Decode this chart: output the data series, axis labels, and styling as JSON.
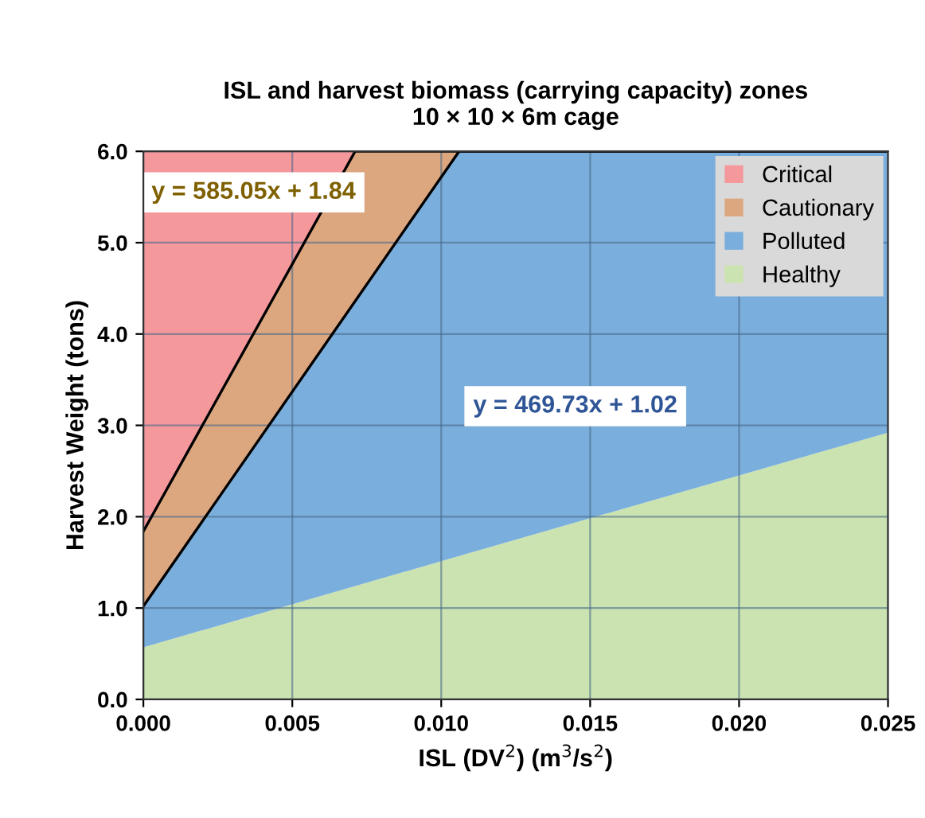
{
  "chart_data": {
    "type": "area",
    "stacked": true,
    "title": "ISL and harvest biomass (carrying capacity) zones\n10 × 10 × 6m cage",
    "xlabel": "ISL (DV$^{2}$) (m$^{3}$/s$^{2}$)",
    "ylabel": "Harvest Weight (tons)",
    "x": [
      0,
      0.00711,
      0.0106,
      0.025
    ],
    "series": [
      {
        "name": "Healthy",
        "color": "#cbe3b0",
        "values": [
          0.57,
          1.24,
          1.57,
          2.92
        ],
        "line_style": "none"
      },
      {
        "name": "Polluted",
        "color": "#7aaedc",
        "values": [
          0.45,
          3.12,
          4.43,
          3.08
        ],
        "line_style": "solid"
      },
      {
        "name": "Cautionary",
        "color": "#dca67f",
        "values": [
          0.82,
          1.64,
          0,
          0
        ],
        "line_style": "solid"
      },
      {
        "name": "Critical",
        "color": "#f4989c",
        "values": [
          4.16,
          0,
          0,
          0
        ],
        "line_style": "none"
      }
    ],
    "annotations": [
      "y = 585.05x + 1.84",
      "y = 469.73x + 1.02"
    ],
    "xlim": [
      0,
      0.025
    ],
    "xticks": [
      {
        "value": 0,
        "label": "0.000"
      },
      {
        "value": 0.005,
        "label": "0.005"
      },
      {
        "value": 0.01,
        "label": "0.010"
      },
      {
        "value": 0.015,
        "label": "0.015"
      },
      {
        "value": 0.02,
        "label": "0.020"
      },
      {
        "value": 0.025,
        "label": "0.025"
      }
    ],
    "ylim": [
      0,
      6
    ],
    "yticks": [
      {
        "value": 0,
        "label": "0.0"
      },
      {
        "value": 1,
        "label": "1.0"
      },
      {
        "value": 2,
        "label": "2.0"
      },
      {
        "value": 3,
        "label": "3.0"
      },
      {
        "value": 4,
        "label": "4.0"
      },
      {
        "value": 5,
        "label": "5.0"
      },
      {
        "value": 6,
        "label": "6.0"
      }
    ],
    "grid": true,
    "legend": "top right"
  }
}
